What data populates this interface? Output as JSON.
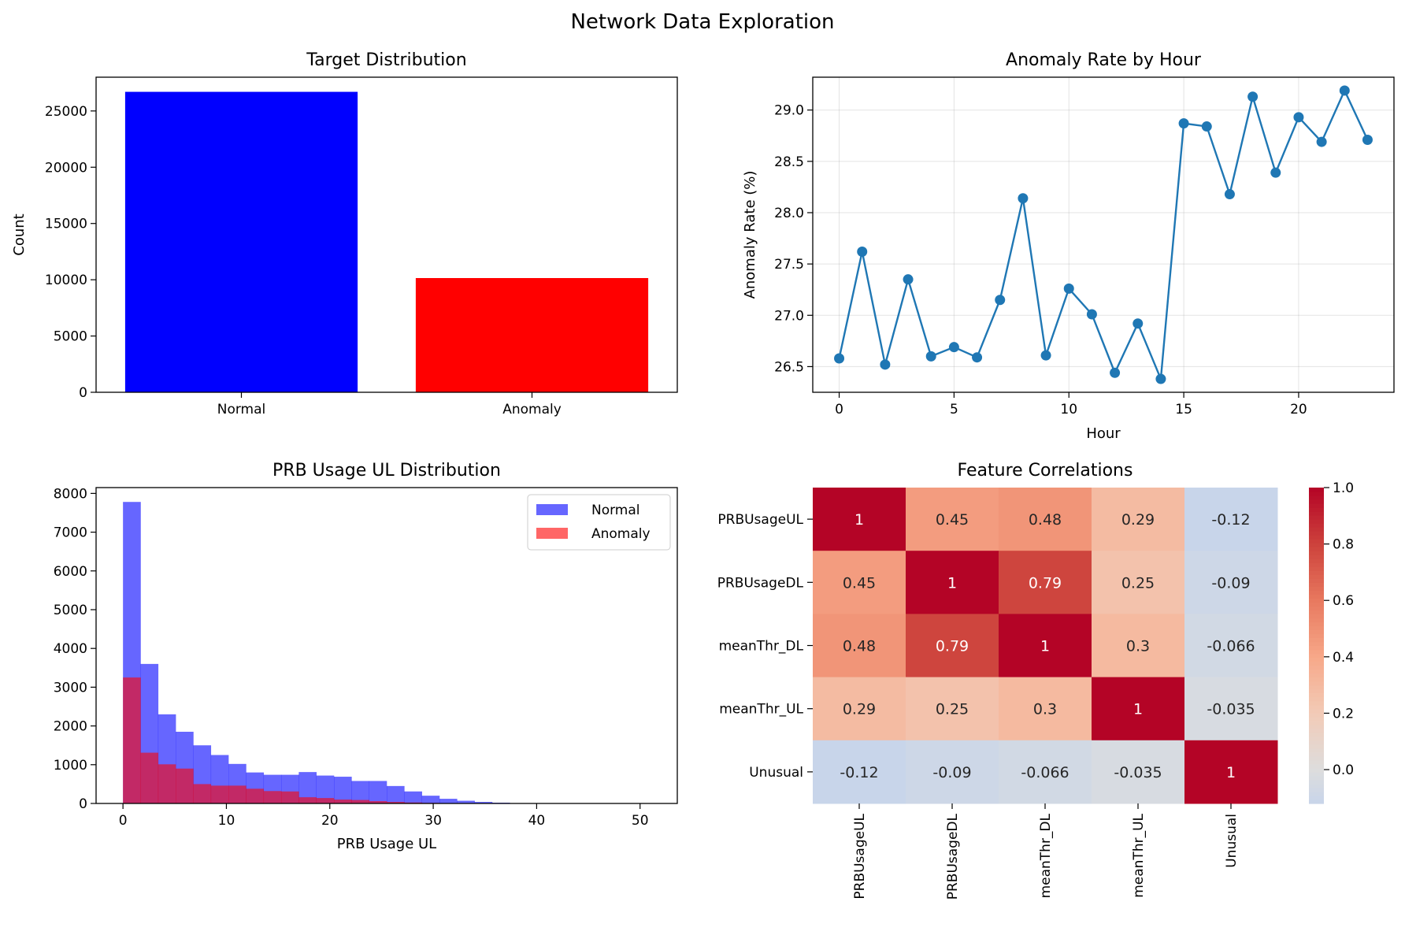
{
  "figure": {
    "title": "Network Data Exploration"
  },
  "chart_data": [
    {
      "type": "bar",
      "title": "Target Distribution",
      "xlabel": "",
      "ylabel": "Count",
      "categories": [
        "Normal",
        "Anomaly"
      ],
      "values": [
        26700,
        10150
      ],
      "colors": [
        "#0000ff",
        "#ff0000"
      ],
      "ylim": [
        0,
        28000
      ],
      "yticks": [
        0,
        5000,
        10000,
        15000,
        20000,
        25000
      ],
      "grid": false
    },
    {
      "type": "line",
      "title": "Anomaly Rate by Hour",
      "xlabel": "Hour",
      "ylabel": "Anomaly Rate (%)",
      "x": [
        0,
        1,
        2,
        3,
        4,
        5,
        6,
        7,
        8,
        9,
        10,
        11,
        12,
        13,
        14,
        15,
        16,
        17,
        18,
        19,
        20,
        21,
        22,
        23
      ],
      "y": [
        26.58,
        27.62,
        26.52,
        27.35,
        26.6,
        26.69,
        26.59,
        27.15,
        28.14,
        26.61,
        27.26,
        27.01,
        26.44,
        26.92,
        26.38,
        28.87,
        28.84,
        28.18,
        29.13,
        28.39,
        28.93,
        28.69,
        29.19,
        28.71
      ],
      "color": "#1f77b4",
      "marker": "circle",
      "xlim": [
        -1.15,
        24.15
      ],
      "ylim": [
        26.25,
        29.32
      ],
      "xticks": [
        0,
        5,
        10,
        15,
        20
      ],
      "yticks": [
        "26.5",
        "27.0",
        "27.5",
        "28.0",
        "28.5",
        "29.0"
      ],
      "grid": true
    },
    {
      "type": "histogram",
      "title": "PRB Usage UL Distribution",
      "xlabel": "PRB Usage UL",
      "ylabel": "",
      "bin_width": 1.7,
      "bin_start": 0,
      "series": [
        {
          "name": "Normal",
          "color": "#0000ff",
          "alpha": 0.6,
          "values": [
            7780,
            3600,
            2300,
            1850,
            1500,
            1250,
            1020,
            800,
            740,
            740,
            810,
            720,
            690,
            580,
            580,
            450,
            310,
            200,
            120,
            70,
            40,
            20,
            10,
            5,
            3,
            2,
            1,
            1,
            1,
            1
          ]
        },
        {
          "name": "Anomaly",
          "color": "#ff0000",
          "alpha": 0.6,
          "values": [
            3250,
            1310,
            1010,
            900,
            500,
            460,
            460,
            380,
            320,
            310,
            160,
            140,
            100,
            90,
            60,
            40,
            25,
            15,
            8,
            5,
            3,
            2,
            1,
            1,
            0,
            0,
            0,
            0,
            0,
            0
          ]
        }
      ],
      "xlim": [
        -2.6,
        53.6
      ],
      "ylim": [
        0,
        8150
      ],
      "xticks": [
        0,
        10,
        20,
        30,
        40,
        50
      ],
      "yticks": [
        0,
        1000,
        2000,
        3000,
        4000,
        5000,
        6000,
        7000,
        8000
      ],
      "legend": "top-right"
    },
    {
      "type": "heatmap",
      "title": "Feature Correlations",
      "labels": [
        "PRBUsageUL",
        "PRBUsageDL",
        "meanThr_DL",
        "meanThr_UL",
        "Unusual"
      ],
      "matrix": [
        [
          1,
          0.45,
          0.48,
          0.29,
          -0.12
        ],
        [
          0.45,
          1,
          0.79,
          0.25,
          -0.09
        ],
        [
          0.48,
          0.79,
          1,
          0.3,
          -0.066
        ],
        [
          0.29,
          0.25,
          0.3,
          1,
          -0.035
        ],
        [
          -0.12,
          -0.09,
          -0.066,
          -0.035,
          1
        ]
      ],
      "annotations": [
        [
          "1",
          "0.45",
          "0.48",
          "0.29",
          "-0.12"
        ],
        [
          "0.45",
          "1",
          "0.79",
          "0.25",
          "-0.09"
        ],
        [
          "0.48",
          "0.79",
          "1",
          "0.3",
          "-0.066"
        ],
        [
          "0.29",
          "0.25",
          "0.3",
          "1",
          "-0.035"
        ],
        [
          "-0.12",
          "-0.09",
          "-0.066",
          "-0.035",
          "1"
        ]
      ],
      "colormap": "coolwarm",
      "center": 0,
      "vmin": -0.12,
      "vmax": 1.0,
      "colorbar_ticks": [
        "0.0",
        "0.2",
        "0.4",
        "0.6",
        "0.8",
        "1.0"
      ]
    }
  ]
}
